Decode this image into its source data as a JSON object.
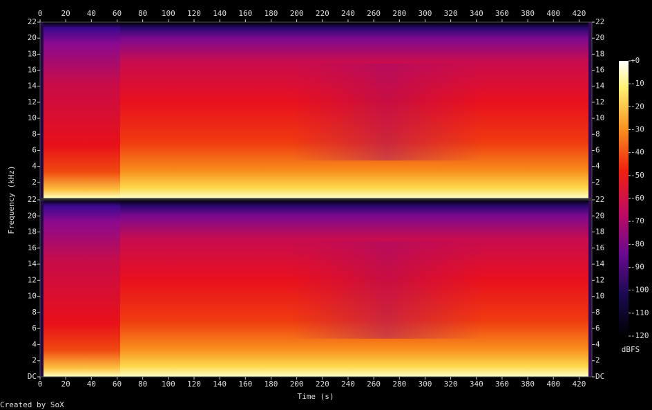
{
  "chart_data": {
    "type": "spectrogram",
    "xlabel": "Time (s)",
    "ylabel": "Frequency (kHz)",
    "footer": "Created by SoX",
    "xlim": [
      0,
      430
    ],
    "xticks": [
      0,
      20,
      40,
      60,
      80,
      100,
      120,
      140,
      160,
      180,
      200,
      220,
      240,
      260,
      280,
      300,
      320,
      340,
      360,
      380,
      400,
      420
    ],
    "channels": [
      {
        "ylim": [
          0,
          22
        ],
        "yticks": [
          2,
          4,
          6,
          8,
          10,
          12,
          14,
          16,
          18,
          20,
          22
        ]
      },
      {
        "ylim": [
          0,
          22
        ],
        "yticks": [
          {
            "value": 0,
            "label": "DC"
          },
          2,
          4,
          6,
          8,
          10,
          12,
          14,
          16,
          18,
          20,
          22
        ]
      }
    ],
    "colorbar": {
      "label": "dBFS",
      "clim": [
        -120,
        0
      ],
      "ticks": [
        {
          "value": 0,
          "label": "+0"
        },
        -10,
        -20,
        -30,
        -40,
        -50,
        -60,
        -70,
        -80,
        -90,
        -100,
        -110,
        -120
      ]
    }
  }
}
